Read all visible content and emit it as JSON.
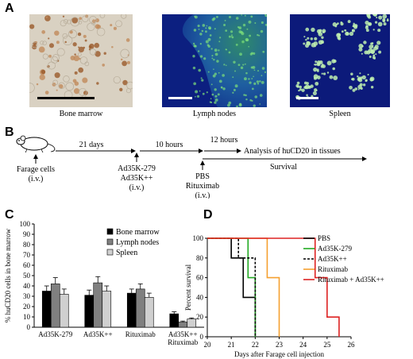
{
  "panelA": {
    "label": "A",
    "images": [
      {
        "caption": "Bone marrow",
        "stain": "brown IHC on tissue"
      },
      {
        "caption": "Lymph nodes",
        "stain": "green fluorescence on blue"
      },
      {
        "caption": "Spleen",
        "stain": "green fluorescence on blue"
      }
    ]
  },
  "panelB": {
    "label": "B",
    "farage": "Farage cells",
    "farage_route": "(i.v.)",
    "t1": "21 days",
    "ad1": "Ad35K-279",
    "ad2": "Ad35K++",
    "ad_route": "(i.v.)",
    "t2": "10 hours",
    "pbs": "PBS",
    "rituximab": "Rituximab",
    "rit_route": "(i.v.)",
    "t3": "12 hours",
    "analysis": "Analysis of huCD20 in tissues",
    "survival": "Survival"
  },
  "panelC": {
    "label": "C",
    "chart_data": {
      "type": "bar",
      "ylabel": "% huCD20 cells in bone marrow",
      "ylim": [
        0,
        100
      ],
      "yticks": [
        0,
        10,
        20,
        30,
        40,
        50,
        60,
        70,
        80,
        90,
        100
      ],
      "categories": [
        "Ad35K-279",
        "Ad35K++",
        "Rituximab",
        "Ad35K++\nRituximab"
      ],
      "category_lines": [
        [
          "Ad35K-279"
        ],
        [
          "Ad35K++"
        ],
        [
          "Rituximab"
        ],
        [
          "Ad35K++",
          "Rituximab"
        ]
      ],
      "series": [
        {
          "name": "Bone marrow",
          "color": "#000000",
          "values": [
            35,
            31,
            33,
            13
          ],
          "errors": [
            5,
            5,
            4,
            2
          ]
        },
        {
          "name": "Lymph nodes",
          "color": "#808080",
          "values": [
            42,
            43,
            37,
            5
          ],
          "errors": [
            6,
            6,
            5,
            1
          ]
        },
        {
          "name": "Spleen",
          "color": "#d0d0d0",
          "values": [
            32,
            35,
            29,
            8
          ],
          "errors": [
            5,
            5,
            4,
            1
          ]
        }
      ],
      "legend": "top-right"
    }
  },
  "panelD": {
    "label": "D",
    "chart_data": {
      "type": "line",
      "step": true,
      "xlabel": "Days after Farage cell injection",
      "ylabel": "Percent survival",
      "xlim": [
        20,
        26
      ],
      "ylim": [
        0,
        100
      ],
      "xticks": [
        20,
        21,
        22,
        23,
        24,
        25,
        26
      ],
      "yticks": [
        0,
        20,
        40,
        60,
        80,
        100
      ],
      "series": [
        {
          "name": "PBS",
          "color": "#000000",
          "dash": "solid",
          "x": [
            20,
            21,
            21.5,
            22,
            22
          ],
          "y": [
            100,
            80,
            40,
            40,
            0
          ]
        },
        {
          "name": "Ad35K-279",
          "color": "#22aa22",
          "dash": "solid",
          "x": [
            20,
            21.3,
            21.7,
            22,
            22
          ],
          "y": [
            100,
            100,
            60,
            60,
            0
          ]
        },
        {
          "name": "Ad35K++",
          "color": "#000000",
          "dash": "dashed",
          "x": [
            20,
            21.3,
            22,
            22
          ],
          "y": [
            100,
            80,
            80,
            0
          ]
        },
        {
          "name": "Rituximab",
          "color": "#f5a030",
          "dash": "solid",
          "x": [
            20,
            22.5,
            23,
            23
          ],
          "y": [
            100,
            60,
            60,
            0
          ]
        },
        {
          "name": "Rituximab + Ad35K++",
          "color": "#dd2222",
          "dash": "solid",
          "x": [
            20,
            24.5,
            25,
            25.5,
            25.5
          ],
          "y": [
            100,
            60,
            20,
            20,
            0
          ]
        }
      ],
      "legend": "top-right"
    }
  }
}
